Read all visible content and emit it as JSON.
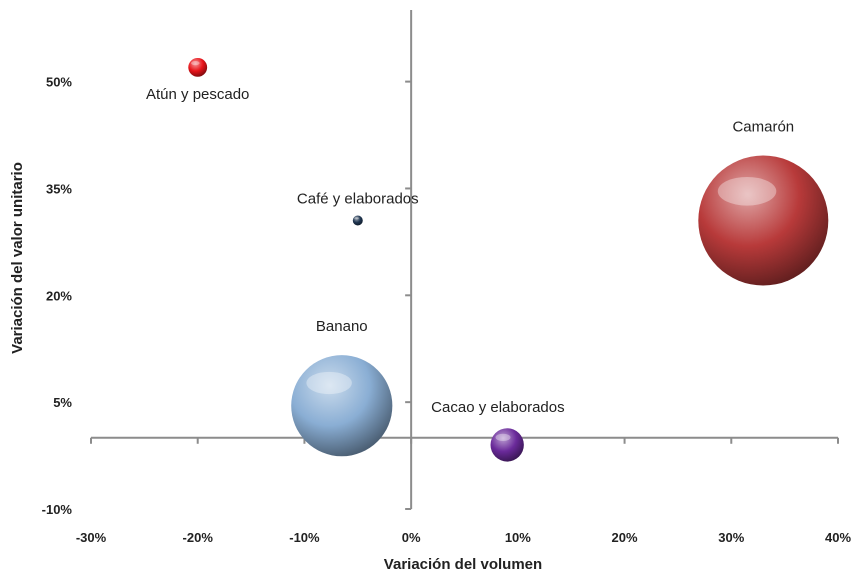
{
  "chart_data": {
    "type": "scatter",
    "title": "",
    "xlabel": "Variación del volumen",
    "ylabel": "Variación del valor unitario",
    "xlim": [
      -30,
      40
    ],
    "ylim": [
      -10,
      55
    ],
    "x_ticks": [
      "-30%",
      "-20%",
      "-10%",
      "0%",
      "10%",
      "20%",
      "30%",
      "40%"
    ],
    "y_ticks": [
      "-10%",
      "5%",
      "20%",
      "35%",
      "50%"
    ],
    "x_tick_values": [
      -30,
      -20,
      -10,
      0,
      10,
      20,
      30,
      40
    ],
    "y_tick_values": [
      -10,
      5,
      20,
      35,
      50
    ],
    "grid": false,
    "legend": "none",
    "points": [
      {
        "label": "Atún y pescado",
        "x": -20,
        "y": 52,
        "size": 0.8,
        "color": "#e8141a",
        "labelPos": "below"
      },
      {
        "label": "Café y elaborados",
        "x": -5,
        "y": 30.5,
        "size": 0.08,
        "color": "#1f3550",
        "labelPos": "above"
      },
      {
        "label": "Camarón",
        "x": 33,
        "y": 30.5,
        "size": 38,
        "color": "#b83a3a",
        "labelPos": "above"
      },
      {
        "label": "Banano",
        "x": -6.5,
        "y": 4.5,
        "size": 23,
        "color": "#8aaed4",
        "labelPos": "above"
      },
      {
        "label": "Cacao y elaborados",
        "x": 9,
        "y": -1,
        "size": 2.5,
        "color": "#6a2a9a",
        "labelPos": "right"
      }
    ]
  }
}
